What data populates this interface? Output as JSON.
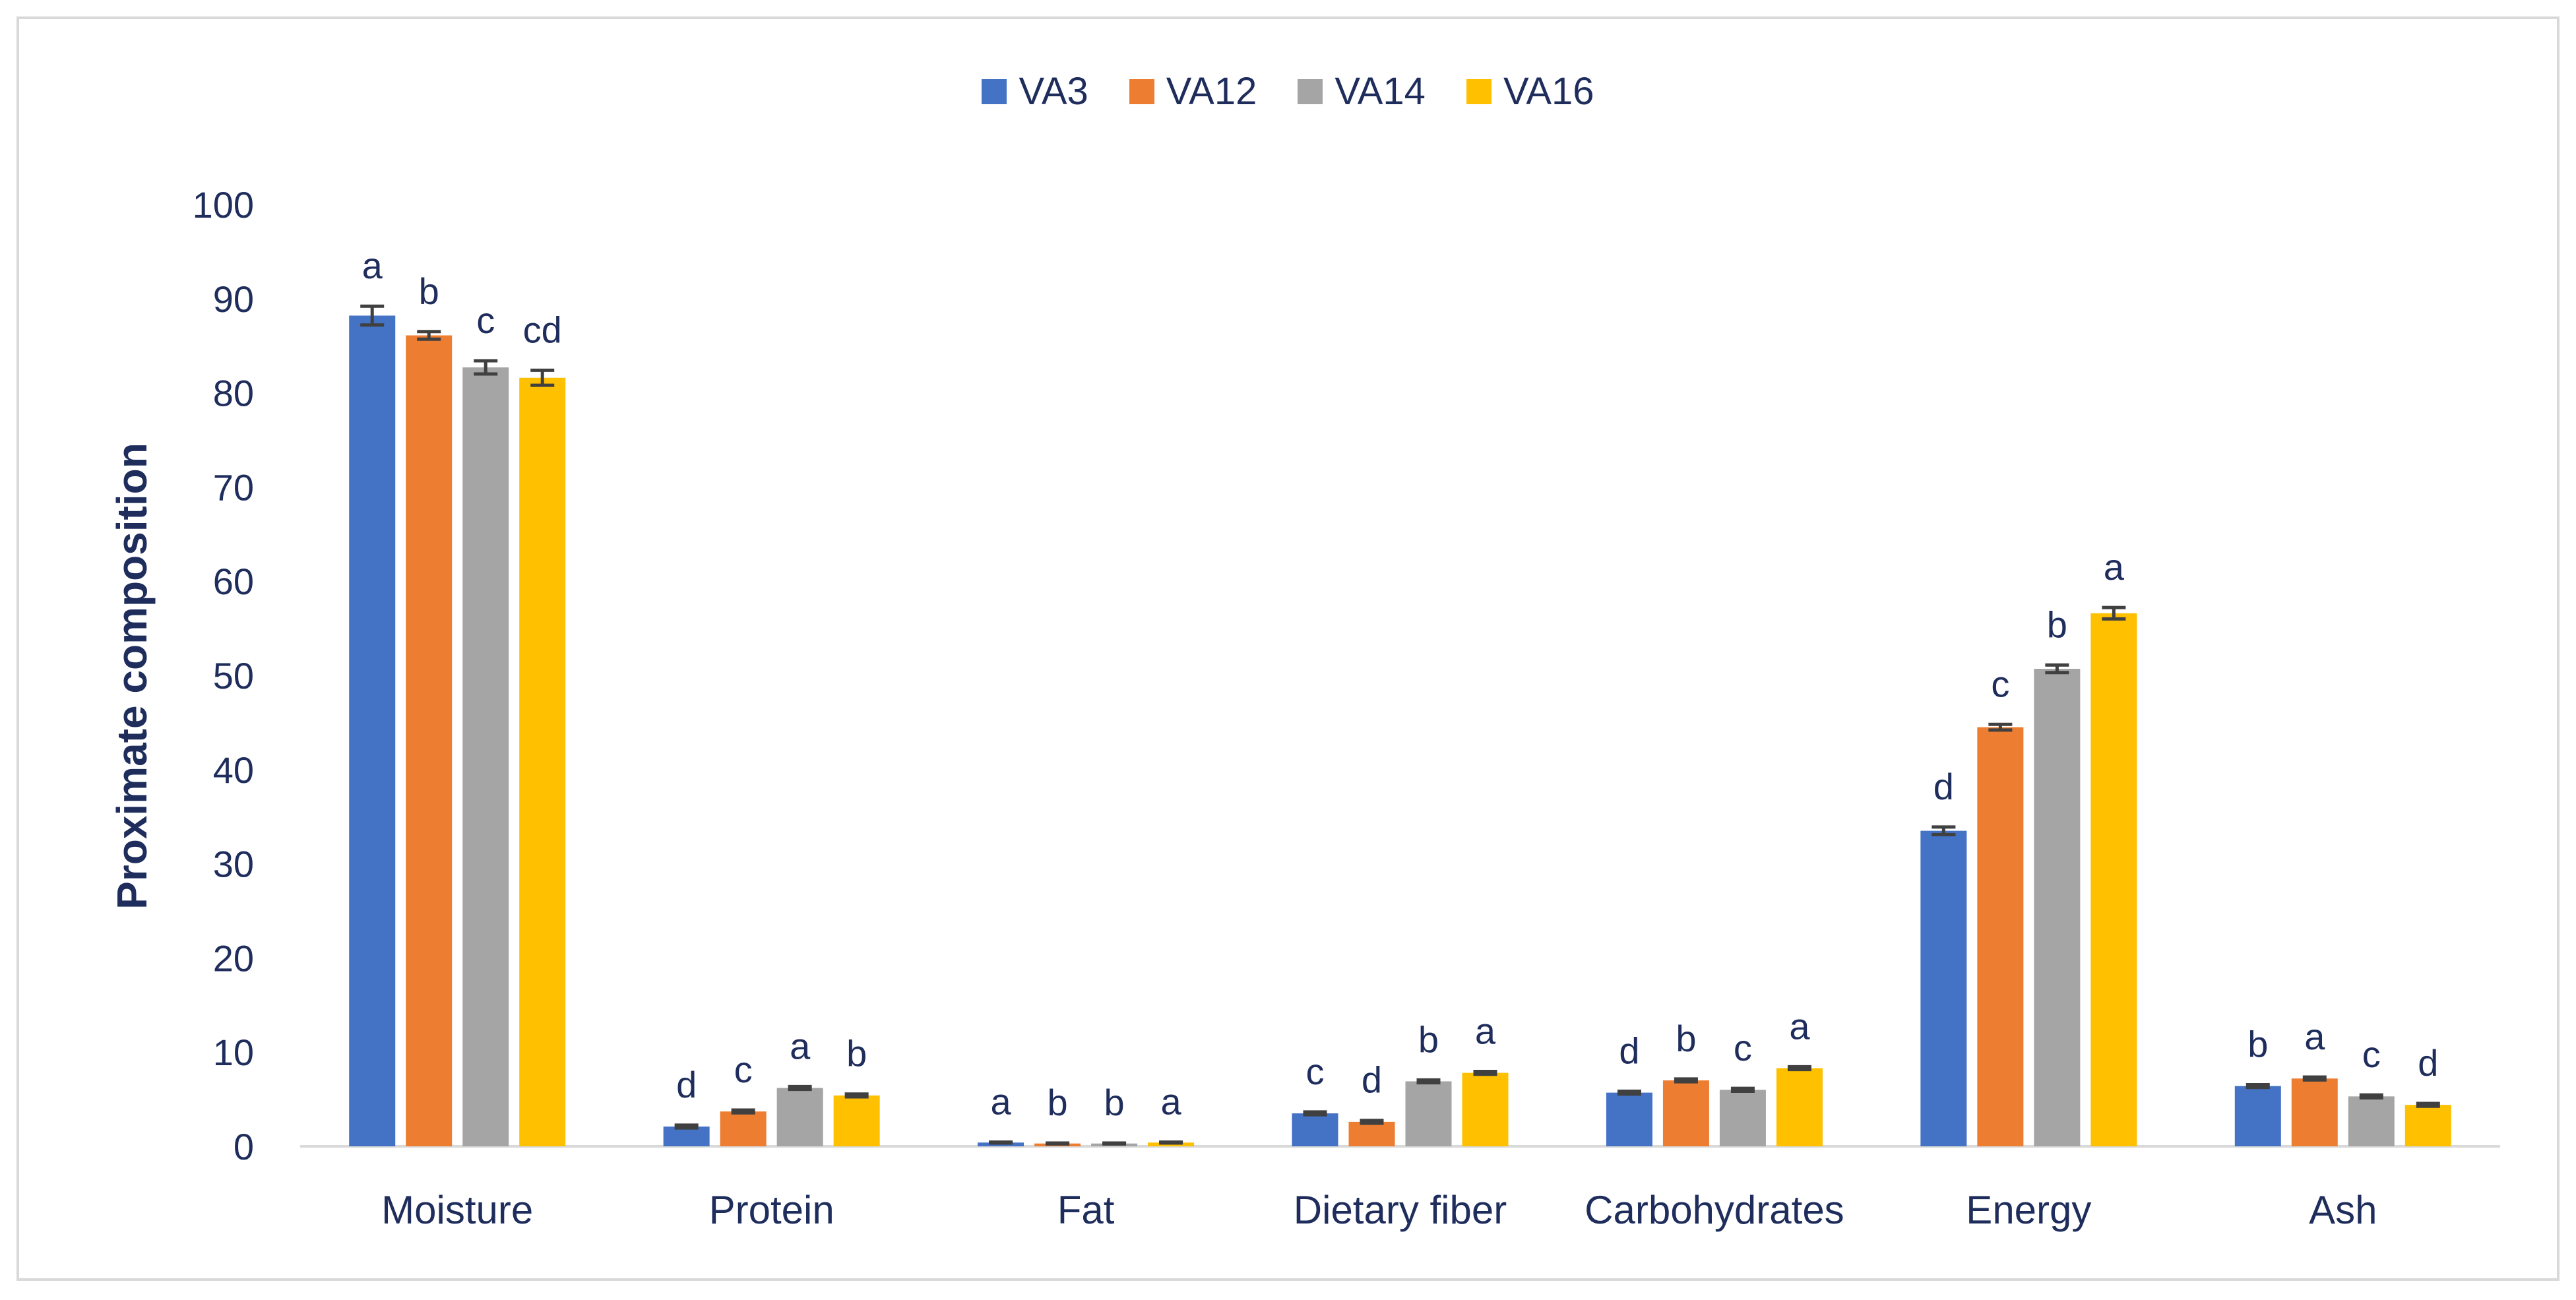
{
  "chart_data": {
    "type": "bar",
    "title": "",
    "xlabel": "",
    "ylabel": "Proximate composition",
    "ylim": [
      0,
      100
    ],
    "yticks": [
      0,
      10,
      20,
      30,
      40,
      50,
      60,
      70,
      80,
      90,
      100
    ],
    "grid": false,
    "legend_position": "top-center",
    "categories": [
      "Moisture",
      "Protein",
      "Fat",
      "Dietary fiber",
      "Carbohydrates",
      "Energy",
      "Ash"
    ],
    "series": [
      {
        "name": "VA3",
        "color": "#4472c4",
        "values": [
          88.2,
          2.1,
          0.4,
          3.5,
          5.7,
          33.5,
          6.4
        ],
        "errors": [
          1.0,
          0.15,
          0.05,
          0.15,
          0.15,
          0.4,
          0.15
        ],
        "letters": [
          "a",
          "d",
          "a",
          "c",
          "d",
          "d",
          "b"
        ]
      },
      {
        "name": "VA12",
        "color": "#ed7d31",
        "values": [
          86.1,
          3.7,
          0.3,
          2.6,
          7.0,
          44.5,
          7.2
        ],
        "errors": [
          0.4,
          0.15,
          0.05,
          0.15,
          0.15,
          0.3,
          0.15
        ],
        "letters": [
          "b",
          "c",
          "b",
          "d",
          "b",
          "c",
          "a"
        ]
      },
      {
        "name": "VA14",
        "color": "#a5a5a5",
        "values": [
          82.7,
          6.2,
          0.3,
          6.9,
          6.0,
          50.7,
          5.3
        ],
        "errors": [
          0.7,
          0.15,
          0.05,
          0.15,
          0.15,
          0.4,
          0.15
        ],
        "letters": [
          "c",
          "a",
          "b",
          "b",
          "c",
          "b",
          "c"
        ]
      },
      {
        "name": "VA16",
        "color": "#ffc000",
        "values": [
          81.6,
          5.4,
          0.4,
          7.8,
          8.3,
          56.6,
          4.4
        ],
        "errors": [
          0.8,
          0.15,
          0.05,
          0.15,
          0.15,
          0.6,
          0.15
        ],
        "letters": [
          "cd",
          "b",
          "a",
          "a",
          "a",
          "a",
          "d"
        ]
      }
    ]
  }
}
